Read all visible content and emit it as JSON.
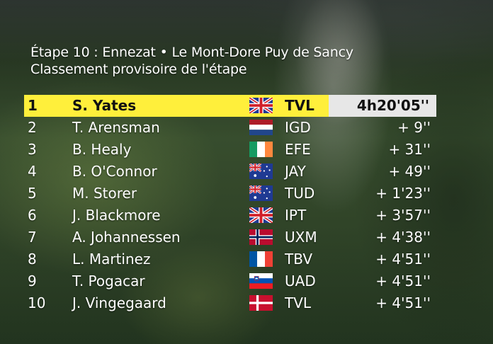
{
  "header": {
    "line1": "Étape 10 : Ennezat • Le Mont-Dore Puy de Sancy",
    "line2": "Classement provisoire de l'étape"
  },
  "colors": {
    "leader_highlight": "#ffef3b",
    "leader_time_bg": "#e7e7e7",
    "text": "#ffffff"
  },
  "standings": [
    {
      "rank": "1",
      "rider": "S. Yates",
      "flag": "flag-uk-icon",
      "team": "TVL",
      "time": "4h20'05''"
    },
    {
      "rank": "2",
      "rider": "T. Arensman",
      "flag": "flag-netherlands-icon",
      "team": "IGD",
      "time": "+ 9''"
    },
    {
      "rank": "3",
      "rider": "B. Healy",
      "flag": "flag-ireland-icon",
      "team": "EFE",
      "time": "+ 31''"
    },
    {
      "rank": "4",
      "rider": "B. O'Connor",
      "flag": "flag-australia-icon",
      "team": "JAY",
      "time": "+ 49''"
    },
    {
      "rank": "5",
      "rider": "M. Storer",
      "flag": "flag-australia-icon",
      "team": "TUD",
      "time": "+ 1'23''"
    },
    {
      "rank": "6",
      "rider": "J. Blackmore",
      "flag": "flag-uk-icon",
      "team": "IPT",
      "time": "+ 3'57''"
    },
    {
      "rank": "7",
      "rider": "A. Johannessen",
      "flag": "flag-norway-icon",
      "team": "UXM",
      "time": "+ 4'38''"
    },
    {
      "rank": "8",
      "rider": "L. Martinez",
      "flag": "flag-france-icon",
      "team": "TBV",
      "time": "+ 4'51''"
    },
    {
      "rank": "9",
      "rider": "T. Pogacar",
      "flag": "flag-slovenia-icon",
      "team": "UAD",
      "time": "+ 4'51''"
    },
    {
      "rank": "10",
      "rider": "J. Vingegaard",
      "flag": "flag-denmark-icon",
      "team": "TVL",
      "time": "+ 4'51''"
    }
  ]
}
